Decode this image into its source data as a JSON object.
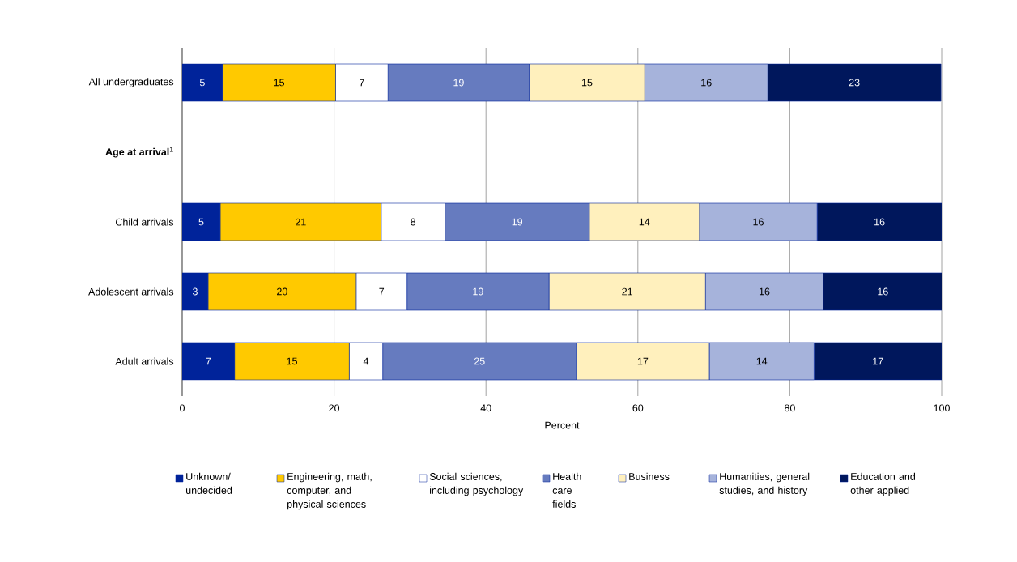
{
  "chart_data": {
    "type": "bar",
    "orientation": "horizontal",
    "stacked": true,
    "categories": [
      "All undergraduates",
      "**Age at arrival**$^{1}$",
      "Child arrivals",
      "Adolescent arrivals",
      "Adult arrivals"
    ],
    "series": [
      {
        "name": "Unknown/ undecided",
        "color": "#00239a",
        "values": [
          5.3,
          null,
          5.0,
          3.4,
          6.9
        ],
        "value_labels": [
          "5",
          null,
          "5",
          "3",
          "7"
        ]
      },
      {
        "name": "Engineering, math, computer, and physical sciences",
        "color": "#ffc900",
        "values": [
          14.9,
          null,
          21.2,
          19.5,
          15.1
        ],
        "value_labels": [
          "15",
          null,
          "21",
          "20",
          "15"
        ]
      },
      {
        "name": "Social sciences, including psychology",
        "color": "#ffffff",
        "values": [
          6.9,
          null,
          8.4,
          6.7,
          4.4
        ],
        "value_labels": [
          "7",
          null,
          "8",
          "7",
          "4"
        ]
      },
      {
        "name": "Health care fields",
        "color": "#667bbf",
        "values": [
          18.6,
          null,
          19.0,
          18.7,
          25.5
        ],
        "value_labels": [
          "19",
          null,
          "19",
          "19",
          "25"
        ]
      },
      {
        "name": "Business",
        "color": "#fff0bd",
        "values": [
          15.2,
          null,
          14.5,
          20.6,
          17.5
        ],
        "value_labels": [
          "15",
          null,
          "14",
          "21",
          "17"
        ]
      },
      {
        "name": "Humanities, general studies, and history",
        "color": "#a6b3db",
        "values": [
          16.2,
          null,
          15.5,
          15.5,
          13.8
        ],
        "value_labels": [
          "16",
          null,
          "16",
          "16",
          "14"
        ]
      },
      {
        "name": "Education and other applied",
        "color": "#00175c",
        "values": [
          22.8,
          null,
          16.4,
          15.7,
          16.8
        ],
        "value_labels": [
          "23",
          null,
          "16",
          "16",
          "17"
        ]
      }
    ],
    "xlabel": "Percent",
    "xlim": [
      0,
      100
    ],
    "xticks": [
      0,
      20,
      40,
      60,
      80,
      100
    ],
    "grid": "x",
    "legend": "bottom"
  }
}
